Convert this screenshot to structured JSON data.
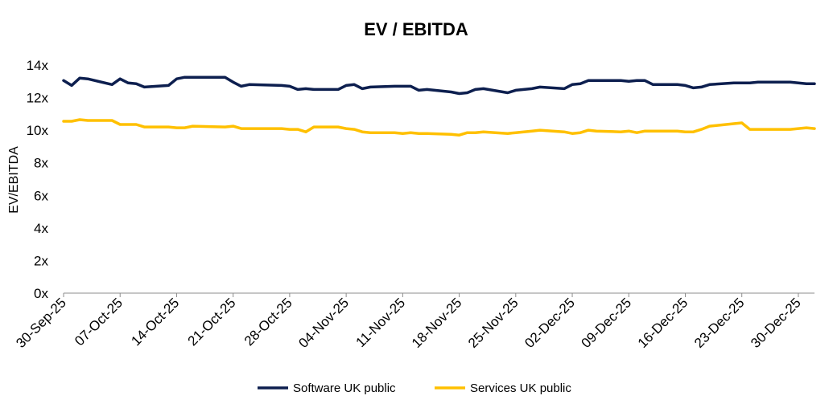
{
  "chart_data": {
    "type": "line",
    "title": "EV / EBITDA",
    "xlabel": "",
    "ylabel": "EV/EBITDA",
    "ylim": [
      0,
      14
    ],
    "yticks": [
      "0x",
      "2x",
      "4x",
      "6x",
      "8x",
      "10x",
      "12x",
      "14x"
    ],
    "x_tick_labels": [
      "30-Sep-25",
      "07-Oct-25",
      "14-Oct-25",
      "21-Oct-25",
      "28-Oct-25",
      "04-Nov-25",
      "11-Nov-25",
      "18-Nov-25",
      "25-Nov-25",
      "02-Dec-25",
      "09-Dec-25",
      "16-Dec-25",
      "23-Dec-25",
      "30-Dec-25"
    ],
    "x_range_days": [
      0,
      93
    ],
    "legend_position": "bottom",
    "grid": false,
    "series": [
      {
        "name": "Software UK public",
        "color": "#0d1f4f",
        "x": [
          0,
          1,
          2,
          3,
          6,
          7,
          8,
          9,
          10,
          13,
          14,
          15,
          16,
          20,
          21,
          22,
          23,
          27,
          28,
          29,
          30,
          31,
          34,
          35,
          36,
          37,
          38,
          41,
          42,
          43,
          44,
          45,
          48,
          49,
          50,
          51,
          52,
          55,
          56,
          57,
          58,
          59,
          62,
          63,
          64,
          65,
          66,
          69,
          70,
          71,
          72,
          73,
          76,
          77,
          78,
          79,
          80,
          83,
          84,
          85,
          86,
          87,
          90,
          91,
          92,
          93
        ],
        "values": [
          13.05,
          12.75,
          13.2,
          13.15,
          12.8,
          13.15,
          12.9,
          12.85,
          12.65,
          12.75,
          13.15,
          13.25,
          13.25,
          13.25,
          12.95,
          12.7,
          12.8,
          12.75,
          12.7,
          12.5,
          12.55,
          12.5,
          12.5,
          12.75,
          12.8,
          12.55,
          12.65,
          12.7,
          12.7,
          12.7,
          12.45,
          12.5,
          12.35,
          12.25,
          12.3,
          12.5,
          12.55,
          12.3,
          12.45,
          12.5,
          12.55,
          12.65,
          12.55,
          12.8,
          12.85,
          13.05,
          13.05,
          13.05,
          13.0,
          13.05,
          13.05,
          12.8,
          12.8,
          12.75,
          12.6,
          12.65,
          12.8,
          12.9,
          12.9,
          12.9,
          12.95,
          12.95,
          12.95,
          12.9,
          12.85,
          12.85
        ],
        "legend_label": "Software UK public"
      },
      {
        "name": "Services UK public",
        "color": "#ffc000",
        "x": [
          0,
          1,
          2,
          3,
          6,
          7,
          8,
          9,
          10,
          13,
          14,
          15,
          16,
          20,
          21,
          22,
          23,
          27,
          28,
          29,
          30,
          31,
          34,
          35,
          36,
          37,
          38,
          41,
          42,
          43,
          44,
          45,
          48,
          49,
          50,
          51,
          52,
          55,
          56,
          57,
          58,
          59,
          62,
          63,
          64,
          65,
          66,
          69,
          70,
          71,
          72,
          73,
          76,
          77,
          78,
          79,
          80,
          83,
          84,
          85,
          86,
          87,
          90,
          91,
          92,
          93
        ],
        "values": [
          10.55,
          10.55,
          10.65,
          10.6,
          10.6,
          10.35,
          10.35,
          10.35,
          10.2,
          10.2,
          10.15,
          10.15,
          10.25,
          10.2,
          10.25,
          10.1,
          10.1,
          10.1,
          10.05,
          10.05,
          9.9,
          10.2,
          10.2,
          10.1,
          10.05,
          9.9,
          9.85,
          9.85,
          9.8,
          9.85,
          9.8,
          9.8,
          9.75,
          9.7,
          9.85,
          9.85,
          9.9,
          9.8,
          9.85,
          9.9,
          9.95,
          10.0,
          9.9,
          9.8,
          9.85,
          10.0,
          9.95,
          9.9,
          9.95,
          9.85,
          9.95,
          9.95,
          9.95,
          9.9,
          9.9,
          10.05,
          10.25,
          10.4,
          10.45,
          10.05,
          10.05,
          10.05,
          10.05,
          10.1,
          10.15,
          10.1
        ],
        "legend_label": "Services UK public"
      }
    ]
  }
}
